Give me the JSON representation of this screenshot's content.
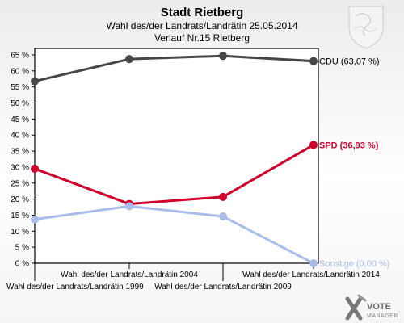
{
  "chart_data": {
    "type": "line",
    "title": "Stadt Rietberg",
    "subtitle": "Wahl des/der Landrats/Landrätin 25.05.2014",
    "subtitle2": "Verlauf Nr.15 Rietberg",
    "categories": [
      "Wahl des/der Landrats/Landrätin 1999",
      "Wahl des/der Landrats/Landrätin 2004",
      "Wahl des/der Landrats/Landrätin 2009",
      "Wahl des/der Landrats/Landrätin 2014"
    ],
    "ylim": [
      0,
      65
    ],
    "yticks": [
      "0 %",
      "5 %",
      "10 %",
      "15 %",
      "20 %",
      "25 %",
      "30 %",
      "35 %",
      "40 %",
      "45 %",
      "50 %",
      "55 %",
      "60 %",
      "65 %"
    ],
    "series": [
      {
        "name": "CDU",
        "label": "CDU (63,07 %)",
        "color": "#464646",
        "values": [
          56.8,
          63.7,
          64.7,
          63.07
        ]
      },
      {
        "name": "SPD",
        "label": "SPD (36,93 %)",
        "color": "#d0002b",
        "values": [
          29.5,
          18.5,
          20.7,
          36.93
        ]
      },
      {
        "name": "Sonstige",
        "label": "Sonstige (0,00 %)",
        "color": "#aabdea",
        "values": [
          13.7,
          17.8,
          14.6,
          0.0
        ]
      }
    ],
    "grid": false,
    "legend": "inline-right"
  },
  "logo": {
    "line1": "VOTE",
    "line2": "MANAGER"
  }
}
